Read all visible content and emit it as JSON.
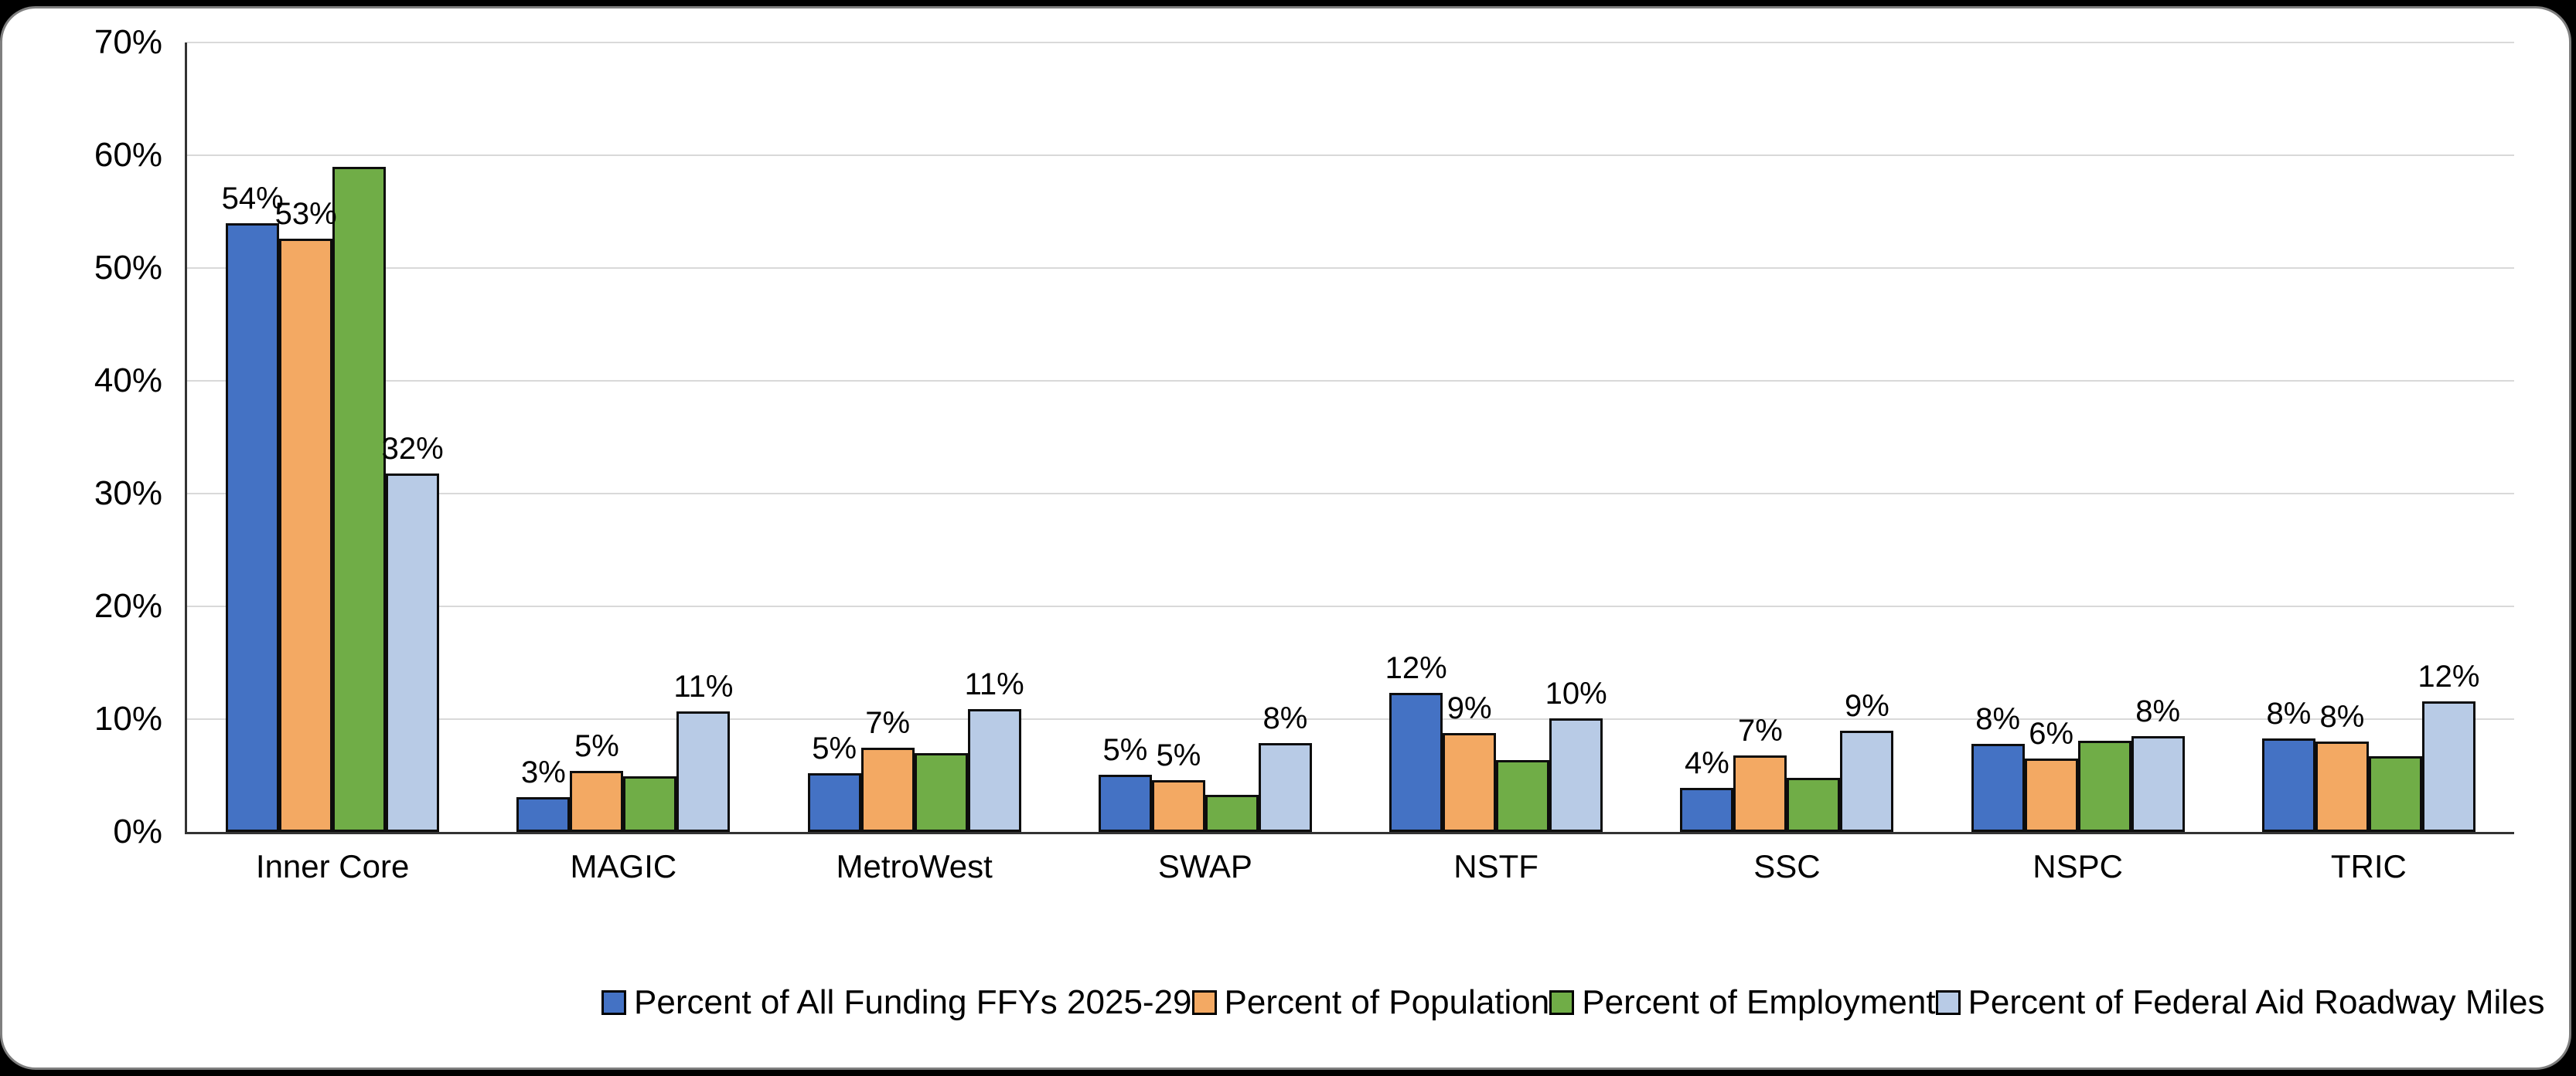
{
  "chart_data": {
    "type": "bar",
    "title": "",
    "xlabel": "",
    "ylabel": "",
    "categories": [
      "Inner Core",
      "MAGIC",
      "MetroWest",
      "SWAP",
      "NSTF",
      "SSC",
      "NSPC",
      "TRIC"
    ],
    "series": [
      {
        "name": "Percent of All Funding FFYs 2025-29",
        "color": "#4472C4",
        "values": [
          54,
          3.1,
          5.2,
          5.1,
          12.3,
          3.9,
          7.8,
          8.3
        ],
        "labels": [
          "54%",
          "3%",
          "5%",
          "5%",
          "12%",
          "4%",
          "8%",
          "8%"
        ]
      },
      {
        "name": "Percent of Population",
        "color": "#F3A963",
        "values": [
          52.6,
          5.4,
          7.5,
          4.6,
          8.8,
          6.8,
          6.5,
          8
        ],
        "labels": [
          "53%",
          "5%",
          "7%",
          "5%",
          "9%",
          "7%",
          "6%",
          "8%"
        ]
      },
      {
        "name": "Percent of Employment",
        "color": "#70AD47",
        "values": [
          59,
          4.9,
          7,
          3.3,
          6.4,
          4.8,
          8.1,
          6.7
        ],
        "labels": [
          null,
          null,
          null,
          null,
          null,
          null,
          null,
          null
        ]
      },
      {
        "name": "Percent of Federal Aid Roadway Miles",
        "color": "#B8CBE6",
        "values": [
          31.8,
          10.7,
          10.9,
          7.9,
          10.1,
          9,
          8.5,
          11.6
        ],
        "labels": [
          "32%",
          "11%",
          "11%",
          "8%",
          "10%",
          "9%",
          "8%",
          "12%"
        ]
      }
    ],
    "ylim": [
      0,
      70
    ],
    "y_tick_step": 10,
    "y_ticks": [
      "0%",
      "10%",
      "20%",
      "30%",
      "40%",
      "50%",
      "60%",
      "70%"
    ],
    "grid": true,
    "legend_position": "bottom"
  },
  "colors": {
    "page_background": "#000000",
    "card_background": "#FFFFFF",
    "card_border": "#7F7F7F",
    "gridline": "#D9D9D9",
    "axis_line": "#333333",
    "bar_outline": "#0D0D0D",
    "label_text": "#000000"
  }
}
